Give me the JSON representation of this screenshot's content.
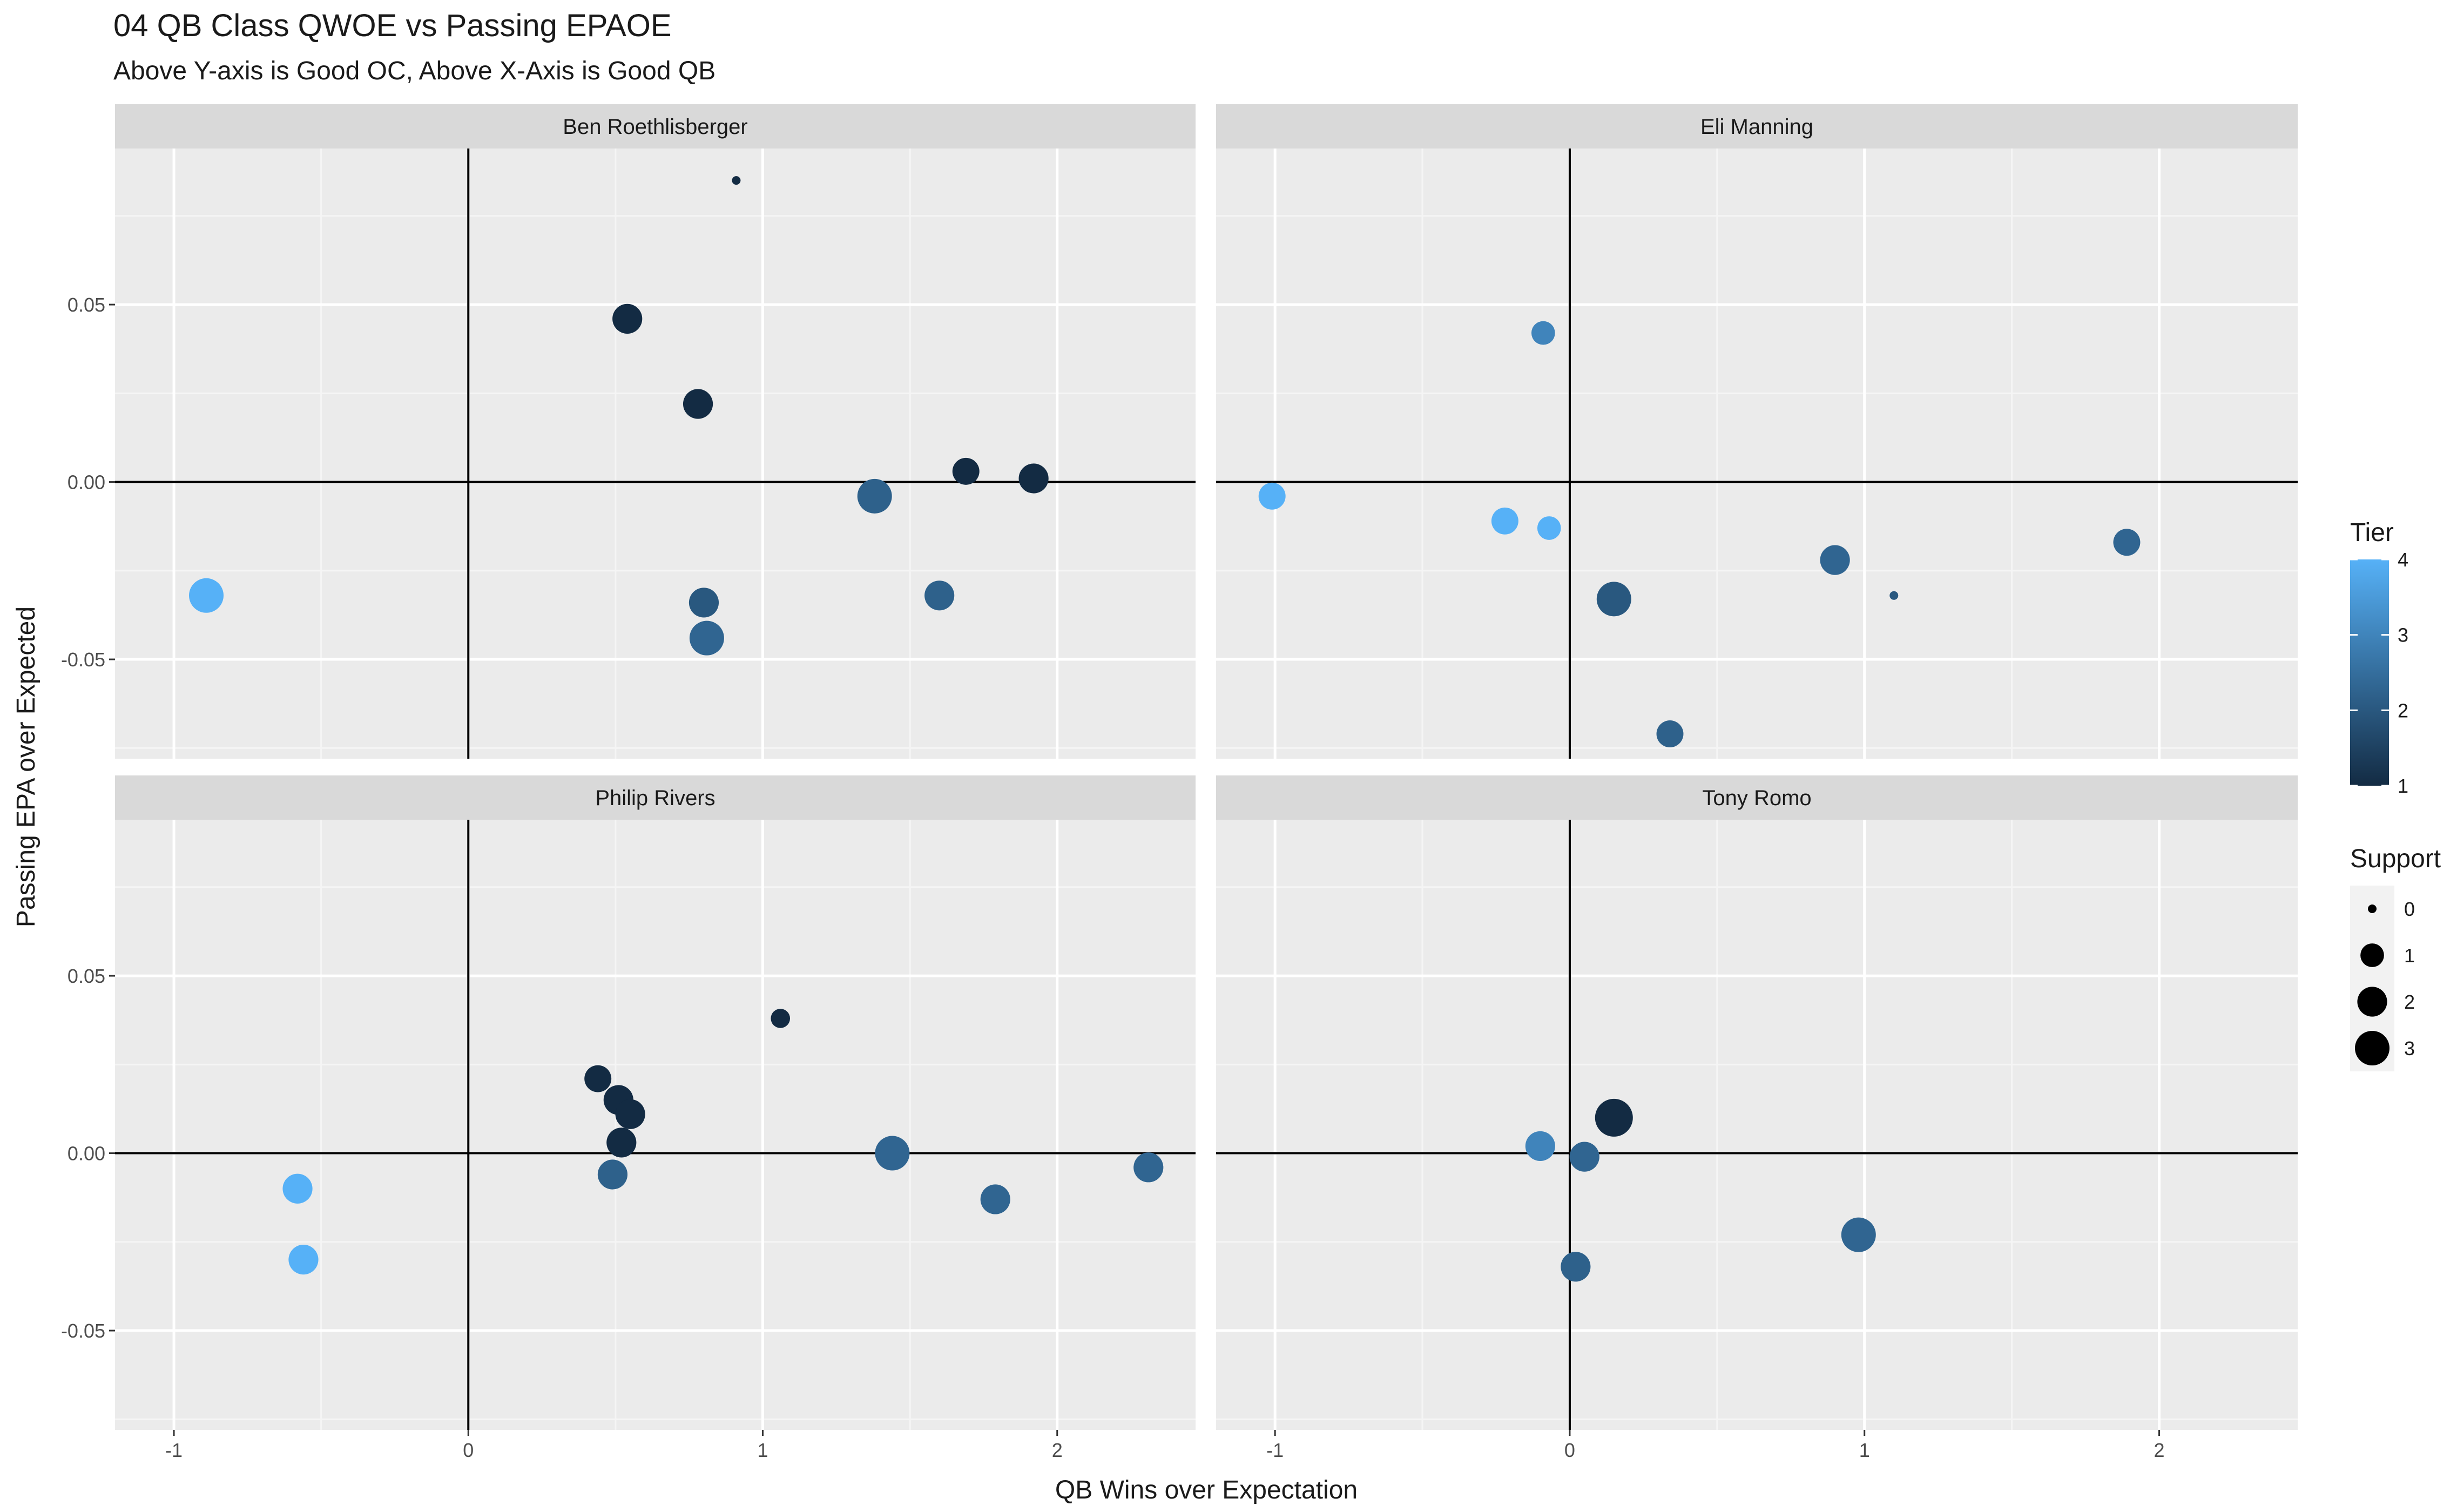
{
  "chart_data": {
    "type": "scatter",
    "title": "04 QB Class QWOE vs Passing EPAOE",
    "subtitle": "Above Y-axis is Good OC, Above X-Axis is Good QB",
    "xlabel": "QB Wins over Expectation",
    "ylabel": "Passing EPA over Expected",
    "xlim": [
      -1.2,
      2.47
    ],
    "ylim": [
      -0.078,
      0.094
    ],
    "x_ticks": [
      "-1",
      "0",
      "1",
      "2"
    ],
    "x_tick_values": [
      -1,
      0,
      1,
      2
    ],
    "y_ticks": [
      "0.05",
      "0.00",
      "-0.05"
    ],
    "y_tick_values": [
      0.05,
      0.0,
      -0.05
    ],
    "grid": true,
    "reference_lines": {
      "x": 0,
      "y": 0
    },
    "color_legend": {
      "title": "Tier",
      "labels": [
        "4",
        "3",
        "2",
        "1"
      ],
      "values": [
        4,
        3,
        2,
        1
      ],
      "low_color": "#132B43",
      "high_color": "#56B1F7"
    },
    "size_legend": {
      "title": "Support",
      "labels": [
        "0",
        "1",
        "2",
        "3"
      ],
      "values": [
        0,
        1,
        2,
        3
      ]
    },
    "legend_position": "right",
    "panels": [
      {
        "name": "Ben Roethlisberger",
        "points": [
          {
            "x": 0.91,
            "y": 0.085,
            "tier": 1.0,
            "support": 0
          },
          {
            "x": 0.54,
            "y": 0.046,
            "tier": 1.0,
            "support": 2
          },
          {
            "x": 0.78,
            "y": 0.022,
            "tier": 1.0,
            "support": 2
          },
          {
            "x": 1.69,
            "y": 0.003,
            "tier": 1.0,
            "support": 1.5
          },
          {
            "x": 1.92,
            "y": 0.001,
            "tier": 1.0,
            "support": 2
          },
          {
            "x": 1.38,
            "y": -0.004,
            "tier": 2.2,
            "support": 3
          },
          {
            "x": 1.6,
            "y": -0.032,
            "tier": 2.2,
            "support": 2
          },
          {
            "x": 0.8,
            "y": -0.034,
            "tier": 2.0,
            "support": 2
          },
          {
            "x": 0.81,
            "y": -0.044,
            "tier": 2.3,
            "support": 3
          },
          {
            "x": -0.89,
            "y": -0.032,
            "tier": 4.0,
            "support": 3
          }
        ]
      },
      {
        "name": "Eli Manning",
        "points": [
          {
            "x": -0.09,
            "y": 0.042,
            "tier": 3.0,
            "support": 1
          },
          {
            "x": -1.01,
            "y": -0.004,
            "tier": 4.0,
            "support": 1.5
          },
          {
            "x": -0.22,
            "y": -0.011,
            "tier": 4.0,
            "support": 1.5
          },
          {
            "x": -0.07,
            "y": -0.013,
            "tier": 4.0,
            "support": 1
          },
          {
            "x": 0.9,
            "y": -0.022,
            "tier": 2.3,
            "support": 2
          },
          {
            "x": 1.1,
            "y": -0.032,
            "tier": 2.0,
            "support": 0
          },
          {
            "x": 1.89,
            "y": -0.017,
            "tier": 2.3,
            "support": 1.5
          },
          {
            "x": 0.15,
            "y": -0.033,
            "tier": 2.0,
            "support": 3
          },
          {
            "x": 0.34,
            "y": -0.071,
            "tier": 2.2,
            "support": 1.5
          }
        ]
      },
      {
        "name": "Philip Rivers",
        "points": [
          {
            "x": 1.06,
            "y": 0.038,
            "tier": 1.0,
            "support": 0.5
          },
          {
            "x": 0.44,
            "y": 0.021,
            "tier": 1.0,
            "support": 1.5
          },
          {
            "x": 0.51,
            "y": 0.015,
            "tier": 1.0,
            "support": 2
          },
          {
            "x": 0.55,
            "y": 0.011,
            "tier": 1.0,
            "support": 2
          },
          {
            "x": 0.52,
            "y": 0.003,
            "tier": 1.0,
            "support": 2
          },
          {
            "x": 0.49,
            "y": -0.006,
            "tier": 2.2,
            "support": 2
          },
          {
            "x": 1.44,
            "y": 0.0,
            "tier": 2.3,
            "support": 3
          },
          {
            "x": 1.79,
            "y": -0.013,
            "tier": 2.3,
            "support": 2
          },
          {
            "x": 2.31,
            "y": -0.004,
            "tier": 2.3,
            "support": 2
          },
          {
            "x": -0.58,
            "y": -0.01,
            "tier": 4.0,
            "support": 2
          },
          {
            "x": -0.56,
            "y": -0.03,
            "tier": 4.0,
            "support": 2
          }
        ]
      },
      {
        "name": "Tony Romo",
        "points": [
          {
            "x": 0.15,
            "y": 0.01,
            "tier": 1.0,
            "support": 3.8
          },
          {
            "x": -0.1,
            "y": 0.002,
            "tier": 3.0,
            "support": 2
          },
          {
            "x": 0.05,
            "y": -0.001,
            "tier": 2.3,
            "support": 2
          },
          {
            "x": 0.98,
            "y": -0.023,
            "tier": 2.3,
            "support": 3
          },
          {
            "x": 0.02,
            "y": -0.032,
            "tier": 2.2,
            "support": 2
          }
        ]
      }
    ]
  }
}
